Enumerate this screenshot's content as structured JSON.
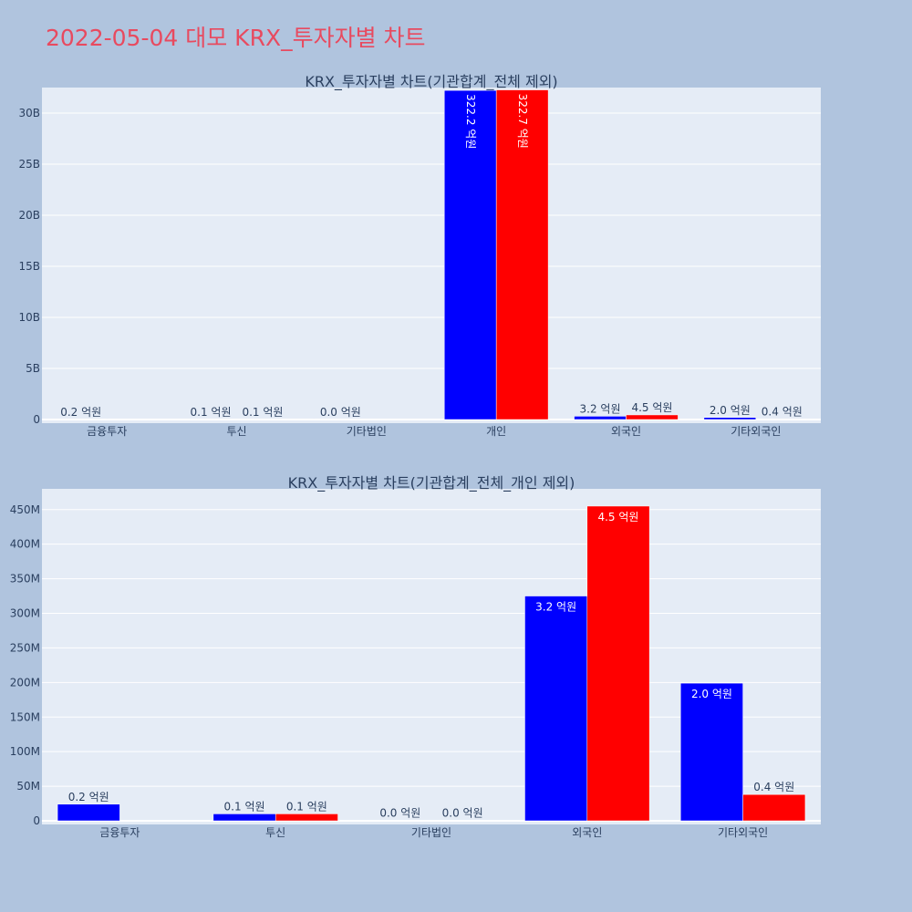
{
  "page_title": "2022-05-04 대모 KRX_투자자별 차트",
  "colors": {
    "series_a": "#0000ff",
    "series_b": "#ff0000",
    "plot_bg": "#e5ecf6",
    "paper_bg": "#b0c4de",
    "title": "#e84a5f"
  },
  "chart_data": [
    {
      "type": "bar",
      "title": "KRX_투자자별 차트(기관합계_전체 제외)",
      "categories": [
        "금융투자",
        "투신",
        "기타법인",
        "개인",
        "외국인",
        "기타외국인"
      ],
      "ylim": [
        0,
        32500000000
      ],
      "yticks": [
        0,
        5000000000,
        10000000000,
        15000000000,
        20000000000,
        25000000000,
        30000000000
      ],
      "ytick_labels": [
        "0",
        "5B",
        "10B",
        "15B",
        "20B",
        "25B",
        "30B"
      ],
      "grid": true,
      "legend": "none",
      "series": [
        {
          "color": "#0000ff",
          "values": [
            20000000,
            10000000,
            0,
            32220000000,
            320000000,
            200000000
          ],
          "labels": [
            "0.2 억원",
            "0.1 억원",
            "0.0 억원",
            "322.2 억원",
            "3.2 억원",
            "2.0 억원"
          ]
        },
        {
          "color": "#ff0000",
          "values": [
            null,
            10000000,
            null,
            32270000000,
            450000000,
            40000000
          ],
          "labels": [
            "",
            "0.1 억원",
            "",
            "322.7 억원",
            "4.5 억원",
            "0.4 억원"
          ]
        }
      ]
    },
    {
      "type": "bar",
      "title": "KRX_투자자별 차트(기관합계_전체_개인 제외)",
      "categories": [
        "금융투자",
        "투신",
        "기타법인",
        "외국인",
        "기타외국인"
      ],
      "ylim": [
        0,
        480000000
      ],
      "yticks": [
        0,
        50000000,
        100000000,
        150000000,
        200000000,
        250000000,
        300000000,
        350000000,
        400000000,
        450000000
      ],
      "ytick_labels": [
        "0",
        "50M",
        "100M",
        "150M",
        "200M",
        "250M",
        "300M",
        "350M",
        "400M",
        "450M"
      ],
      "grid": true,
      "legend": "none",
      "series": [
        {
          "color": "#0000ff",
          "values": [
            24000000,
            10000000,
            500000,
            325000000,
            199000000
          ],
          "labels": [
            "0.2 억원",
            "0.1 억원",
            "0.0 억원",
            "3.2 억원",
            "2.0 억원"
          ]
        },
        {
          "color": "#ff0000",
          "values": [
            null,
            10000000,
            500000,
            455000000,
            38000000
          ],
          "labels": [
            "",
            "0.1 억원",
            "0.0 억원",
            "4.5 억원",
            "0.4 억원"
          ]
        }
      ]
    }
  ]
}
